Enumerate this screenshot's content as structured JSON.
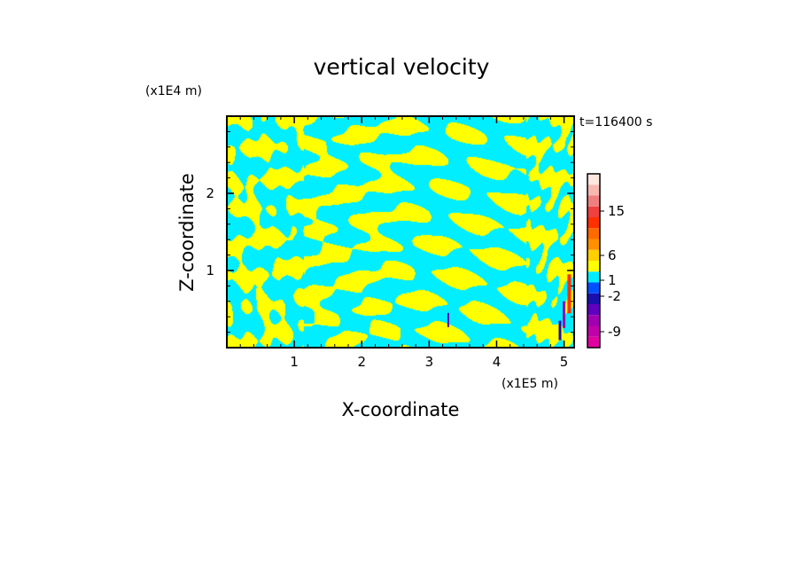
{
  "chart_data": {
    "type": "heatmap",
    "title": "vertical velocity",
    "xlabel": "X-coordinate",
    "ylabel": "Z-coordinate",
    "x_unit": "(x1E5 m)",
    "y_unit": "(x1E4 m)",
    "time_label": "t=116400 s",
    "xlim": [
      0,
      5.15
    ],
    "ylim": [
      0,
      3.0
    ],
    "x_ticks": [
      "1",
      "2",
      "3",
      "4",
      "5"
    ],
    "y_ticks": [
      "1",
      "2"
    ],
    "x_tick_values": [
      1,
      2,
      3,
      4,
      5
    ],
    "y_tick_values": [
      1,
      2
    ],
    "field_colors": {
      "positive": "#ffff00",
      "negative": "#00eeff"
    },
    "colorbar": {
      "levels_bottom_to_top": [
        {
          "color": "#e000a0"
        },
        {
          "color": "#c000a8"
        },
        {
          "color": "#a000b0"
        },
        {
          "color": "#6000c0"
        },
        {
          "color": "#1a10b0"
        },
        {
          "color": "#0050ff"
        },
        {
          "color": "#00eeff"
        },
        {
          "color": "#ffff00"
        },
        {
          "color": "#ffd000"
        },
        {
          "color": "#ff9000"
        },
        {
          "color": "#ff6a00"
        },
        {
          "color": "#ff3000"
        },
        {
          "color": "#f04040"
        },
        {
          "color": "#f08080"
        },
        {
          "color": "#f8b8b0"
        },
        {
          "color": "#fde8e0"
        }
      ],
      "labels": [
        "15",
        "6",
        "1",
        "-2",
        "-9"
      ],
      "label_levels": [
        15,
        6,
        1,
        -2,
        -9
      ]
    }
  }
}
